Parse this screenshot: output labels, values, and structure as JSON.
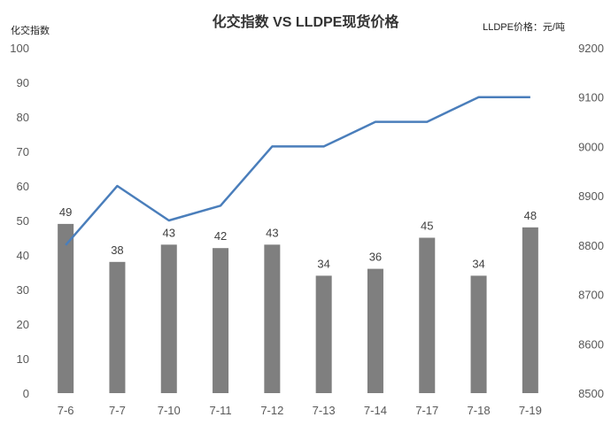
{
  "chart_data": {
    "type": "bar+line",
    "title": "化交指数 VS LLDPE现货价格",
    "left_axis_label": "化交指数",
    "right_axis_label": "LLDPE价格：元/吨",
    "categories": [
      "7-6",
      "7-7",
      "7-10",
      "7-11",
      "7-12",
      "7-13",
      "7-14",
      "7-17",
      "7-18",
      "7-19"
    ],
    "left_axis": {
      "min": 0,
      "max": 100,
      "step": 10
    },
    "right_axis": {
      "min": 8500,
      "max": 9200,
      "step": 100
    },
    "series": [
      {
        "type": "bar",
        "axis": "left",
        "color": "#7f7f7f",
        "values": [
          49,
          38,
          43,
          42,
          43,
          34,
          36,
          45,
          34,
          48
        ]
      },
      {
        "type": "line",
        "axis": "right",
        "color": "#4a7ebb",
        "values": [
          8800,
          8920,
          8850,
          8880,
          9000,
          9000,
          9050,
          9050,
          9100,
          9100
        ]
      }
    ],
    "grid": false,
    "data_labels": true
  }
}
